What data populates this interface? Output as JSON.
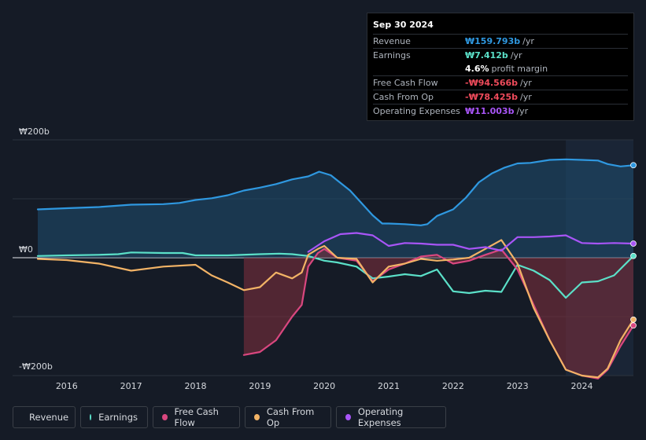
{
  "tooltip": {
    "date": "Sep 30 2024",
    "rows": [
      {
        "label": "Revenue",
        "value": "₩159.793b",
        "unit": "/yr",
        "color": "#2f98e0"
      },
      {
        "label": "Earnings",
        "value": "₩7.412b",
        "unit": "/yr",
        "color": "#5be0c8"
      },
      {
        "label": "",
        "value": "4.6%",
        "unit": "profit margin",
        "color": "#ffffff"
      },
      {
        "label": "Free Cash Flow",
        "value": "-₩94.566b",
        "unit": "/yr",
        "color": "#ef4b5b"
      },
      {
        "label": "Cash From Op",
        "value": "-₩78.425b",
        "unit": "/yr",
        "color": "#ef4b5b"
      },
      {
        "label": "Operating Expenses",
        "value": "₩11.003b",
        "unit": "/yr",
        "color": "#a855f7"
      }
    ]
  },
  "legend": [
    {
      "label": "Revenue",
      "color": "#2f98e0"
    },
    {
      "label": "Earnings",
      "color": "#5be0c8"
    },
    {
      "label": "Free Cash Flow",
      "color": "#d9477f"
    },
    {
      "label": "Cash From Op",
      "color": "#f2b366"
    },
    {
      "label": "Operating Expenses",
      "color": "#a855f7"
    }
  ],
  "chart_data": {
    "type": "line",
    "title": "",
    "y_axis_labels": {
      "top": "₩200b",
      "zero": "₩0",
      "bottom": "-₩200b"
    },
    "ylim": [
      -200,
      200
    ],
    "xlim": [
      2015.55,
      2024.8
    ],
    "x_ticks": [
      2016,
      2017,
      2018,
      2019,
      2020,
      2021,
      2022,
      2023,
      2024
    ],
    "x_tick_labels": [
      "2016",
      "2017",
      "2018",
      "2019",
      "2020",
      "2021",
      "2022",
      "2023",
      "2024"
    ],
    "highlight_start": 2023.75,
    "series": [
      {
        "name": "Revenue",
        "color": "#2f98e0",
        "fill": true,
        "x": [
          2015.55,
          2016.0,
          2016.5,
          2017.0,
          2017.5,
          2017.75,
          2018.0,
          2018.25,
          2018.5,
          2018.75,
          2019.0,
          2019.25,
          2019.5,
          2019.75,
          2019.92,
          2020.1,
          2020.4,
          2020.6,
          2020.75,
          2020.9,
          2021.0,
          2021.25,
          2021.5,
          2021.6,
          2021.75,
          2022.0,
          2022.2,
          2022.4,
          2022.6,
          2022.8,
          2023.0,
          2023.2,
          2023.5,
          2023.75,
          2024.0,
          2024.25,
          2024.4,
          2024.6,
          2024.8
        ],
        "values": [
          82,
          84,
          86,
          90,
          91,
          93,
          98,
          101,
          106,
          114,
          119,
          125,
          133,
          138,
          146,
          140,
          114,
          90,
          72,
          58,
          58,
          57,
          55,
          57,
          71,
          82,
          102,
          128,
          143,
          153,
          160,
          161,
          166,
          167,
          166,
          165,
          159,
          155,
          157
        ]
      },
      {
        "name": "Earnings",
        "color": "#5be0c8",
        "fill": false,
        "x": [
          2015.55,
          2016.0,
          2016.5,
          2016.8,
          2017.0,
          2017.5,
          2017.8,
          2018.0,
          2018.5,
          2019.0,
          2019.3,
          2019.5,
          2019.75,
          2020.0,
          2020.2,
          2020.5,
          2020.75,
          2021.0,
          2021.25,
          2021.5,
          2021.75,
          2022.0,
          2022.25,
          2022.5,
          2022.75,
          2023.0,
          2023.25,
          2023.5,
          2023.75,
          2024.0,
          2024.25,
          2024.5,
          2024.8
        ],
        "values": [
          3,
          4,
          5,
          6,
          9,
          8,
          8,
          4,
          4,
          6,
          7,
          6,
          3,
          -5,
          -8,
          -15,
          -35,
          -32,
          -28,
          -31,
          -20,
          -57,
          -60,
          -56,
          -58,
          -12,
          -22,
          -38,
          -68,
          -42,
          -40,
          -30,
          3
        ]
      },
      {
        "name": "Free Cash Flow",
        "color": "#d9477f",
        "fill": true,
        "x": [
          2018.75,
          2019.0,
          2019.25,
          2019.5,
          2019.65,
          2019.75,
          2019.9,
          2020.0,
          2020.2,
          2020.5,
          2020.75,
          2021.0,
          2021.25,
          2021.5,
          2021.75,
          2022.0,
          2022.25,
          2022.5,
          2022.75,
          2023.0,
          2023.25,
          2023.5,
          2023.75,
          2024.0,
          2024.25,
          2024.4,
          2024.6,
          2024.8
        ],
        "values": [
          -165,
          -160,
          -140,
          -100,
          -80,
          -15,
          8,
          15,
          0,
          -5,
          -40,
          -20,
          -10,
          2,
          5,
          -10,
          -5,
          5,
          14,
          -20,
          -80,
          -140,
          -190,
          -200,
          -205,
          -190,
          -150,
          -115
        ]
      },
      {
        "name": "Cash From Op",
        "color": "#f2b366",
        "fill": false,
        "x": [
          2015.55,
          2016.0,
          2016.5,
          2017.0,
          2017.5,
          2018.0,
          2018.25,
          2018.5,
          2018.75,
          2019.0,
          2019.25,
          2019.5,
          2019.65,
          2019.75,
          2019.9,
          2020.0,
          2020.2,
          2020.5,
          2020.75,
          2021.0,
          2021.25,
          2021.5,
          2021.75,
          2022.0,
          2022.25,
          2022.5,
          2022.75,
          2023.0,
          2023.25,
          2023.5,
          2023.75,
          2024.0,
          2024.25,
          2024.4,
          2024.6,
          2024.8
        ],
        "values": [
          -2,
          -4,
          -10,
          -22,
          -15,
          -12,
          -30,
          -42,
          -55,
          -50,
          -25,
          -35,
          -25,
          5,
          15,
          20,
          0,
          -2,
          -42,
          -15,
          -10,
          -2,
          -5,
          -3,
          0,
          15,
          30,
          -10,
          -85,
          -140,
          -190,
          -200,
          -203,
          -188,
          -140,
          -105
        ]
      },
      {
        "name": "Operating Expenses",
        "color": "#a855f7",
        "fill": false,
        "x": [
          2019.75,
          2020.0,
          2020.25,
          2020.5,
          2020.75,
          2021.0,
          2021.25,
          2021.5,
          2021.75,
          2022.0,
          2022.25,
          2022.5,
          2022.75,
          2023.0,
          2023.25,
          2023.5,
          2023.75,
          2024.0,
          2024.25,
          2024.5,
          2024.8
        ],
        "values": [
          10,
          28,
          40,
          42,
          38,
          20,
          25,
          24,
          22,
          22,
          15,
          18,
          12,
          35,
          35,
          36,
          38,
          25,
          24,
          25,
          24
        ]
      }
    ]
  }
}
